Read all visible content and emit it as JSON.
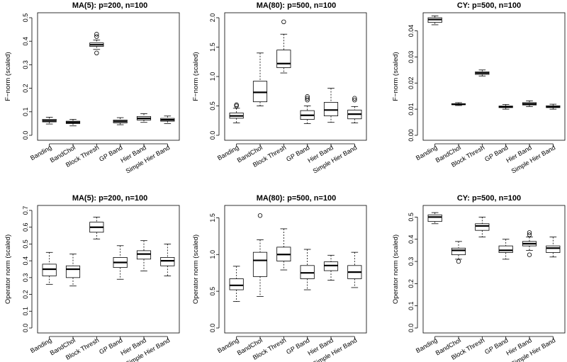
{
  "chart_data": [
    {
      "type": "boxplot",
      "title": "MA(5): p=200, n=100",
      "ylabel": "F−norm (scaled)",
      "ylim": [
        0,
        0.5
      ],
      "yticks": [
        "0.0",
        "0.1",
        "0.2",
        "0.3",
        "0.4",
        "0.5"
      ],
      "categories": [
        "Banding",
        "BandChol",
        "Block Thresh",
        "GP Band",
        "Hier Band",
        "Simple Hier Band"
      ],
      "boxes": [
        {
          "min": 0.048,
          "q1": 0.057,
          "median": 0.062,
          "q3": 0.068,
          "max": 0.077,
          "outliers": []
        },
        {
          "min": 0.04,
          "q1": 0.05,
          "median": 0.055,
          "q3": 0.06,
          "max": 0.068,
          "outliers": []
        },
        {
          "min": 0.365,
          "q1": 0.378,
          "median": 0.385,
          "q3": 0.393,
          "max": 0.405,
          "outliers": [
            0.35,
            0.42,
            0.43
          ]
        },
        {
          "min": 0.045,
          "q1": 0.053,
          "median": 0.059,
          "q3": 0.065,
          "max": 0.075,
          "outliers": []
        },
        {
          "min": 0.055,
          "q1": 0.065,
          "median": 0.072,
          "q3": 0.08,
          "max": 0.092,
          "outliers": []
        },
        {
          "min": 0.05,
          "q1": 0.06,
          "median": 0.066,
          "q3": 0.072,
          "max": 0.082,
          "outliers": []
        }
      ]
    },
    {
      "type": "boxplot",
      "title": "MA(80): p=500, n=100",
      "ylabel": "F−norm (scaled)",
      "ylim": [
        0,
        2.0
      ],
      "yticks": [
        "0.0",
        "0.5",
        "1.0",
        "1.5",
        "2.0"
      ],
      "categories": [
        "Banding",
        "BandChol",
        "Block Thresh",
        "GP Band",
        "Hier Band",
        "Simple Hier Band"
      ],
      "boxes": [
        {
          "min": 0.21,
          "q1": 0.29,
          "median": 0.33,
          "q3": 0.38,
          "max": 0.46,
          "outliers": [
            0.5,
            0.52
          ]
        },
        {
          "min": 0.5,
          "q1": 0.57,
          "median": 0.73,
          "q3": 0.92,
          "max": 1.4,
          "outliers": []
        },
        {
          "min": 1.06,
          "q1": 1.15,
          "median": 1.22,
          "q3": 1.45,
          "max": 1.72,
          "outliers": [
            1.93
          ]
        },
        {
          "min": 0.2,
          "q1": 0.27,
          "median": 0.34,
          "q3": 0.42,
          "max": 0.5,
          "outliers": [
            0.6,
            0.63,
            0.66
          ]
        },
        {
          "min": 0.22,
          "q1": 0.33,
          "median": 0.43,
          "q3": 0.56,
          "max": 0.8,
          "outliers": []
        },
        {
          "min": 0.21,
          "q1": 0.28,
          "median": 0.36,
          "q3": 0.43,
          "max": 0.49,
          "outliers": [
            0.6,
            0.63
          ]
        }
      ]
    },
    {
      "type": "boxplot",
      "title": "CY: p=500, n=100",
      "ylabel": "F−norm (scaled)",
      "ylim": [
        0,
        0.045
      ],
      "yticks": [
        "0.00",
        "0.01",
        "0.02",
        "0.03",
        "0.04"
      ],
      "categories": [
        "Banding",
        "BandChol",
        "Block Thresh",
        "GP Band",
        "Hier Band",
        "Simple Hier Band"
      ],
      "boxes": [
        {
          "min": 0.0423,
          "q1": 0.0432,
          "median": 0.0443,
          "q3": 0.045,
          "max": 0.0457,
          "outliers": []
        },
        {
          "min": 0.0114,
          "q1": 0.0117,
          "median": 0.0119,
          "q3": 0.0121,
          "max": 0.0125,
          "outliers": []
        },
        {
          "min": 0.0227,
          "q1": 0.0233,
          "median": 0.0238,
          "q3": 0.0243,
          "max": 0.025,
          "outliers": []
        },
        {
          "min": 0.01,
          "q1": 0.0106,
          "median": 0.0109,
          "q3": 0.0112,
          "max": 0.0118,
          "outliers": []
        },
        {
          "min": 0.011,
          "q1": 0.0116,
          "median": 0.012,
          "q3": 0.0125,
          "max": 0.0132,
          "outliers": []
        },
        {
          "min": 0.01,
          "q1": 0.0106,
          "median": 0.0109,
          "q3": 0.0113,
          "max": 0.0119,
          "outliers": []
        }
      ]
    },
    {
      "type": "boxplot",
      "title": "MA(5): p=200, n=100",
      "ylabel": "Operator norm (scaled)",
      "ylim": [
        0.0,
        0.7
      ],
      "yticks": [
        "0.0",
        "0.1",
        "0.2",
        "0.3",
        "0.4",
        "0.5",
        "0.6",
        "0.7"
      ],
      "categories": [
        "Banding",
        "BandChol",
        "Block Thresh",
        "GP Band",
        "Hier Band",
        "Simple Hier Band"
      ],
      "boxes": [
        {
          "min": 0.26,
          "q1": 0.31,
          "median": 0.35,
          "q3": 0.38,
          "max": 0.45,
          "outliers": []
        },
        {
          "min": 0.25,
          "q1": 0.3,
          "median": 0.35,
          "q3": 0.37,
          "max": 0.44,
          "outliers": []
        },
        {
          "min": 0.53,
          "q1": 0.57,
          "median": 0.6,
          "q3": 0.63,
          "max": 0.66,
          "outliers": []
        },
        {
          "min": 0.29,
          "q1": 0.36,
          "median": 0.39,
          "q3": 0.42,
          "max": 0.49,
          "outliers": []
        },
        {
          "min": 0.34,
          "q1": 0.41,
          "median": 0.44,
          "q3": 0.46,
          "max": 0.52,
          "outliers": []
        },
        {
          "min": 0.31,
          "q1": 0.37,
          "median": 0.4,
          "q3": 0.42,
          "max": 0.5,
          "outliers": []
        }
      ]
    },
    {
      "type": "boxplot",
      "title": "MA(80): p=500, n=100",
      "ylabel": "Operator norm (scaled)",
      "ylim": [
        0.0,
        1.6
      ],
      "yticks": [
        "0.0",
        "0.5",
        "1.0",
        "1.5"
      ],
      "categories": [
        "Banding",
        "BandChol",
        "Block Thresh",
        "GP Band",
        "Hier Band",
        "Simple Hier Band"
      ],
      "boxes": [
        {
          "min": 0.36,
          "q1": 0.52,
          "median": 0.58,
          "q3": 0.67,
          "max": 0.84,
          "outliers": []
        },
        {
          "min": 0.43,
          "q1": 0.7,
          "median": 0.92,
          "q3": 1.03,
          "max": 1.2,
          "outliers": [
            1.53
          ]
        },
        {
          "min": 0.79,
          "q1": 0.91,
          "median": 1.0,
          "q3": 1.1,
          "max": 1.35,
          "outliers": []
        },
        {
          "min": 0.52,
          "q1": 0.67,
          "median": 0.75,
          "q3": 0.85,
          "max": 1.07,
          "outliers": []
        },
        {
          "min": 0.65,
          "q1": 0.78,
          "median": 0.85,
          "q3": 0.9,
          "max": 0.99,
          "outliers": []
        },
        {
          "min": 0.55,
          "q1": 0.67,
          "median": 0.76,
          "q3": 0.85,
          "max": 1.03,
          "outliers": []
        }
      ]
    },
    {
      "type": "boxplot",
      "title": "CY: p=500, n=100",
      "ylabel": "Operator norm (scaled)",
      "ylim": [
        0.0,
        0.53
      ],
      "yticks": [
        "0.0",
        "0.1",
        "0.2",
        "0.3",
        "0.4",
        "0.5"
      ],
      "categories": [
        "Banding",
        "BandChol",
        "Block Thresh",
        "GP Band",
        "Hier Band",
        "Simple Hier Band"
      ],
      "boxes": [
        {
          "min": 0.47,
          "q1": 0.48,
          "median": 0.5,
          "q3": 0.51,
          "max": 0.52,
          "outliers": []
        },
        {
          "min": 0.31,
          "q1": 0.33,
          "median": 0.35,
          "q3": 0.36,
          "max": 0.39,
          "outliers": [
            0.3
          ]
        },
        {
          "min": 0.41,
          "q1": 0.44,
          "median": 0.46,
          "q3": 0.47,
          "max": 0.5,
          "outliers": []
        },
        {
          "min": 0.31,
          "q1": 0.34,
          "median": 0.35,
          "q3": 0.37,
          "max": 0.4,
          "outliers": []
        },
        {
          "min": 0.35,
          "q1": 0.37,
          "median": 0.38,
          "q3": 0.39,
          "max": 0.41,
          "outliers": [
            0.33,
            0.42,
            0.43
          ]
        },
        {
          "min": 0.32,
          "q1": 0.34,
          "median": 0.36,
          "q3": 0.37,
          "max": 0.41,
          "outliers": []
        }
      ]
    }
  ]
}
